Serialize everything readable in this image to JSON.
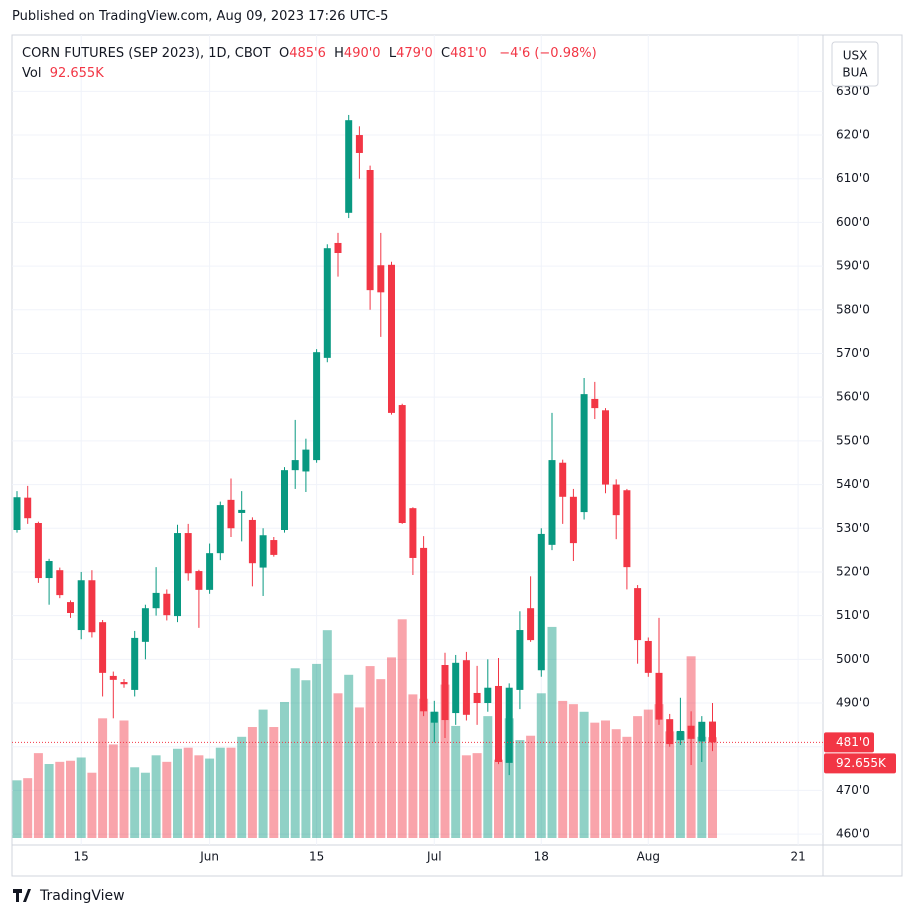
{
  "page": {
    "published": "Published on TradingView.com, Aug 09, 2023 17:26 UTC-5",
    "brand": "TradingView",
    "currency": [
      "USX",
      "BUA"
    ]
  },
  "chart_data": {
    "type": "candlestick",
    "legend": {
      "symbol": "CORN FUTURES (SEP 2023), 1D, CBOT",
      "ohlc": [
        {
          "key": "O",
          "text": "485'6"
        },
        {
          "key": "H",
          "text": "490'0"
        },
        {
          "key": "L",
          "text": "479'0"
        },
        {
          "key": "C",
          "text": "481'0"
        }
      ],
      "change": "−4'6 (−0.98%)",
      "volume_key": "Vol",
      "volume_text": "92.655K"
    },
    "last_price_label": "481'0",
    "last_volume_label": "92.655K",
    "categories": [
      null,
      null,
      null,
      null,
      null,
      null,
      "15",
      null,
      null,
      null,
      null,
      null,
      null,
      null,
      null,
      null,
      null,
      null,
      "Jun",
      null,
      null,
      null,
      null,
      null,
      null,
      null,
      null,
      null,
      "15",
      null,
      null,
      null,
      null,
      null,
      null,
      null,
      null,
      null,
      null,
      "Jul",
      null,
      null,
      null,
      null,
      null,
      null,
      null,
      null,
      null,
      "18",
      null,
      null,
      null,
      null,
      null,
      null,
      null,
      null,
      null,
      "Aug",
      null,
      null,
      null,
      null,
      null,
      null,
      null,
      null,
      null,
      null,
      null,
      null,
      null,
      "21"
    ],
    "open": [
      529.6,
      537,
      531.2,
      518.6,
      520.4,
      513.1,
      506.7,
      518.1,
      508.5,
      496.2,
      494.8,
      493,
      504,
      511.7,
      515,
      509.9,
      528.9,
      520.2,
      515.9,
      524.3,
      536.5,
      533.5,
      531.9,
      521,
      527.3,
      529.6,
      543.3,
      543,
      545.6,
      569,
      595.3,
      602.2,
      620,
      612,
      590.2,
      590.3,
      558.2,
      534.6,
      525.5,
      485.5,
      498.7,
      487.7,
      499.8,
      492.3,
      490,
      493.9,
      476.3,
      493,
      511.7,
      497.5,
      526.2,
      545,
      537.2,
      533.7,
      559.6,
      557,
      540,
      538.7,
      516.3,
      504.2,
      496.9,
      486.3,
      481.5,
      484.8,
      481.2,
      485.75,
      null,
      null,
      null,
      null,
      null,
      null,
      null,
      null
    ],
    "high": [
      538.5,
      539.7,
      531.5,
      523,
      521,
      513.5,
      520,
      520.4,
      509,
      497.2,
      495.5,
      506.5,
      512.5,
      521.1,
      516,
      530.8,
      531,
      520.5,
      526.5,
      536.1,
      541.4,
      538.5,
      532.5,
      530,
      528,
      544,
      554.8,
      550.5,
      571,
      595,
      597.6,
      624.6,
      622,
      613,
      597.6,
      591,
      558.5,
      534.8,
      528.2,
      490.5,
      501.5,
      501,
      501.7,
      498.5,
      500,
      500.3,
      494.5,
      511,
      519,
      530,
      556.4,
      545.7,
      539,
      564.4,
      563.5,
      557.5,
      541.2,
      539,
      517,
      505,
      509.5,
      487.5,
      491.2,
      488.1,
      487,
      490,
      null,
      null,
      null,
      null,
      null,
      null,
      null,
      null
    ],
    "low": [
      529,
      531,
      517.5,
      512.5,
      514,
      509.5,
      504.6,
      505,
      491.5,
      486.5,
      493.5,
      491.5,
      500,
      510,
      508.9,
      508.5,
      518,
      507.2,
      515,
      522.7,
      528,
      527,
      516.7,
      514.5,
      523.5,
      529,
      539,
      538.3,
      545,
      568,
      587.6,
      601,
      610,
      580,
      573.8,
      556,
      531,
      519.3,
      487,
      481,
      482,
      485,
      486,
      485,
      488,
      476,
      473.5,
      488.6,
      504,
      496,
      525,
      531,
      522.5,
      532,
      555,
      538,
      527.5,
      516,
      499,
      496,
      485,
      480,
      480.4,
      475.8,
      476.5,
      479,
      null,
      null,
      null,
      null,
      null,
      null,
      null,
      null
    ],
    "close": [
      537.1,
      532.3,
      518.6,
      522.5,
      514.7,
      510.6,
      518.1,
      506.2,
      496.9,
      495.3,
      494.3,
      504.9,
      511.7,
      515.2,
      510.1,
      528.9,
      519.7,
      515.9,
      524.3,
      535.3,
      530,
      534.2,
      522,
      528.4,
      523.9,
      543.3,
      545.6,
      548,
      570.3,
      594.1,
      593,
      623.4,
      615.9,
      584.5,
      584,
      556.4,
      531.2,
      523.2,
      488.1,
      488,
      486.1,
      499.2,
      487.3,
      490,
      493.5,
      476.5,
      493.5,
      506.7,
      504.4,
      528.7,
      545.6,
      537.2,
      526.6,
      560.7,
      557.5,
      540,
      533,
      521.1,
      504.4,
      496.9,
      486.2,
      480.6,
      483.6,
      481.8,
      485.7,
      481,
      null,
      null,
      null,
      null,
      null,
      null,
      null,
      null
    ],
    "volume": [
      53000,
      55000,
      78000,
      68000,
      70000,
      71000,
      74000,
      60000,
      110000,
      86000,
      108000,
      65000,
      60000,
      76000,
      70000,
      82000,
      83000,
      76000,
      73000,
      83000,
      83000,
      93000,
      102000,
      118000,
      102000,
      125000,
      156000,
      145000,
      160000,
      191000,
      133000,
      150000,
      120000,
      158000,
      146000,
      166000,
      201000,
      132000,
      128000,
      116000,
      141000,
      103000,
      76000,
      78000,
      112000,
      72000,
      110000,
      90000,
      94000,
      133000,
      194000,
      126000,
      123000,
      116000,
      106000,
      108000,
      100000,
      93000,
      112000,
      118000,
      123000,
      98000,
      98000,
      167000,
      93000,
      92655,
      null,
      null,
      null,
      null,
      null,
      null,
      null,
      null
    ],
    "up_color": "#089981",
    "down_color": "#f23645",
    "ylim": [
      457.5,
      642.9
    ],
    "yticks": [
      {
        "value": 460,
        "label": "460'0"
      },
      {
        "value": 470,
        "label": "470'0"
      },
      {
        "value": 480,
        "label": "480'0"
      },
      {
        "value": 490,
        "label": "490'0"
      },
      {
        "value": 500,
        "label": "500'0"
      },
      {
        "value": 510,
        "label": "510'0"
      },
      {
        "value": 520,
        "label": "520'0"
      },
      {
        "value": 530,
        "label": "530'0"
      },
      {
        "value": 540,
        "label": "540'0"
      },
      {
        "value": 550,
        "label": "550'0"
      },
      {
        "value": 560,
        "label": "560'0"
      },
      {
        "value": 570,
        "label": "570'0"
      },
      {
        "value": 580,
        "label": "580'0"
      },
      {
        "value": 590,
        "label": "590'0"
      },
      {
        "value": 600,
        "label": "600'0"
      },
      {
        "value": 610,
        "label": "610'0"
      },
      {
        "value": 620,
        "label": "620'0"
      },
      {
        "value": 630,
        "label": "630'0"
      }
    ],
    "grid": true
  }
}
